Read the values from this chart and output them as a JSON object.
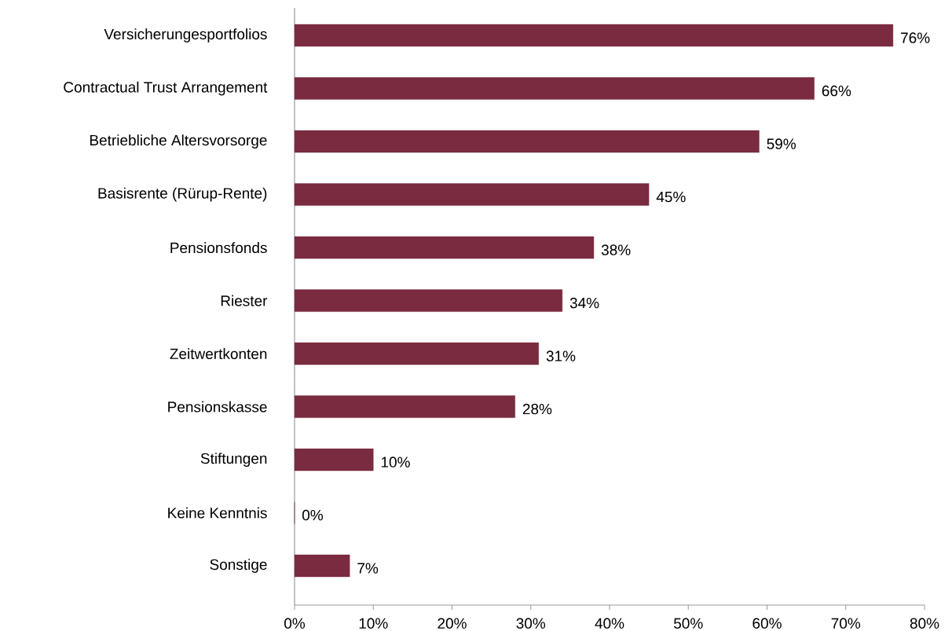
{
  "chart_data": {
    "type": "bar",
    "orientation": "horizontal",
    "categories": [
      "Versicherungesportfolios",
      "Contractual Trust Arrangement",
      "Betriebliche Altersvorsorge",
      "Basisrente (Rürup-Rente)",
      "Pensionsfonds",
      "Riester",
      "Zeitwertkonten",
      "Pensionskasse",
      "Stiftungen",
      "Keine Kenntnis",
      "Sonstige"
    ],
    "values": [
      76,
      66,
      59,
      45,
      38,
      34,
      31,
      28,
      10,
      0,
      7
    ],
    "value_labels": [
      "76%",
      "66%",
      "59%",
      "45%",
      "38%",
      "34%",
      "31%",
      "28%",
      "10%",
      "0%",
      "7%"
    ],
    "color": "#7b2b3f",
    "xlim": [
      0,
      80
    ],
    "xticks": [
      {
        "value": 0,
        "label": "0%"
      },
      {
        "value": 10,
        "label": "10%"
      },
      {
        "value": 20,
        "label": "20%"
      },
      {
        "value": 30,
        "label": "30%"
      },
      {
        "value": 40,
        "label": "40%"
      },
      {
        "value": 50,
        "label": "50%"
      },
      {
        "value": 60,
        "label": "60%"
      },
      {
        "value": 70,
        "label": "70%"
      },
      {
        "value": 80,
        "label": "80%"
      }
    ],
    "grid": false
  }
}
